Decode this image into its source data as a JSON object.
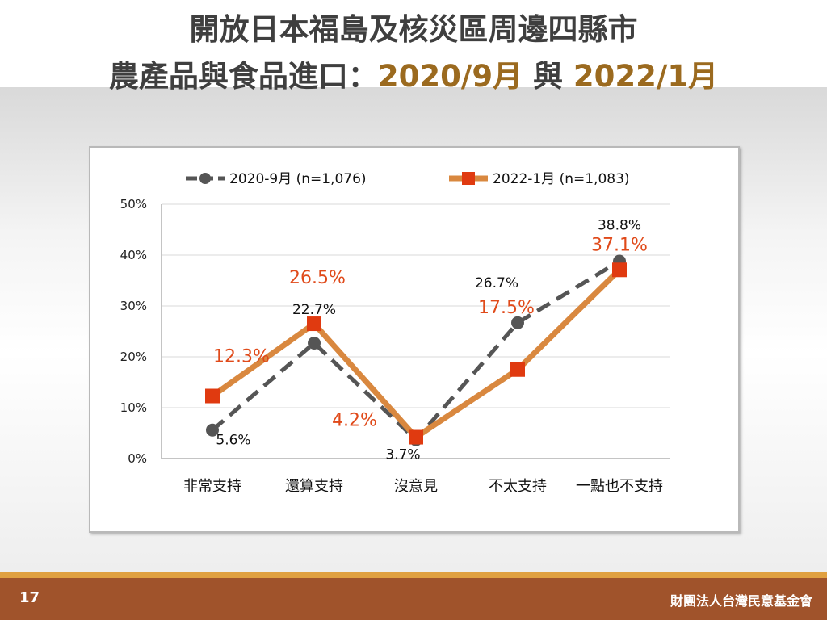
{
  "title": {
    "line1": "開放日本福島及核災區周邊四縣市",
    "line2_prefix": "農產品與食品進口：",
    "line2_date1": "2020/9月",
    "line2_mid": " 與 ",
    "line2_date2": "2022/1月"
  },
  "chart_data": {
    "type": "line",
    "categories": [
      "非常支持",
      "還算支持",
      "沒意見",
      "不太支持",
      "一點也不支持"
    ],
    "yticks": [
      "0%",
      "10%",
      "20%",
      "30%",
      "40%",
      "50%"
    ],
    "ylim": [
      0,
      50
    ],
    "grid": true,
    "legend_position": "top",
    "series": [
      {
        "name": "2020-9月  (n=1,076)",
        "values": [
          5.6,
          22.7,
          3.7,
          26.7,
          38.8
        ],
        "labels": [
          "5.6%",
          "22.7%",
          "3.7%",
          "26.7%",
          "38.8%"
        ],
        "color": "#555555",
        "style": "dashed",
        "marker": "circle"
      },
      {
        "name": "2022-1月  (n=1,083)",
        "values": [
          12.3,
          26.5,
          4.2,
          17.5,
          37.1
        ],
        "labels": [
          "12.3%",
          "26.5%",
          "4.2%",
          "17.5%",
          "37.1%"
        ],
        "color": "#d9883f",
        "label_color": "#e04a1a",
        "marker_color": "#e03a10",
        "style": "solid",
        "marker": "square"
      }
    ]
  },
  "footer": {
    "page_number": "17",
    "organization": "財團法人台灣民意基金會"
  }
}
